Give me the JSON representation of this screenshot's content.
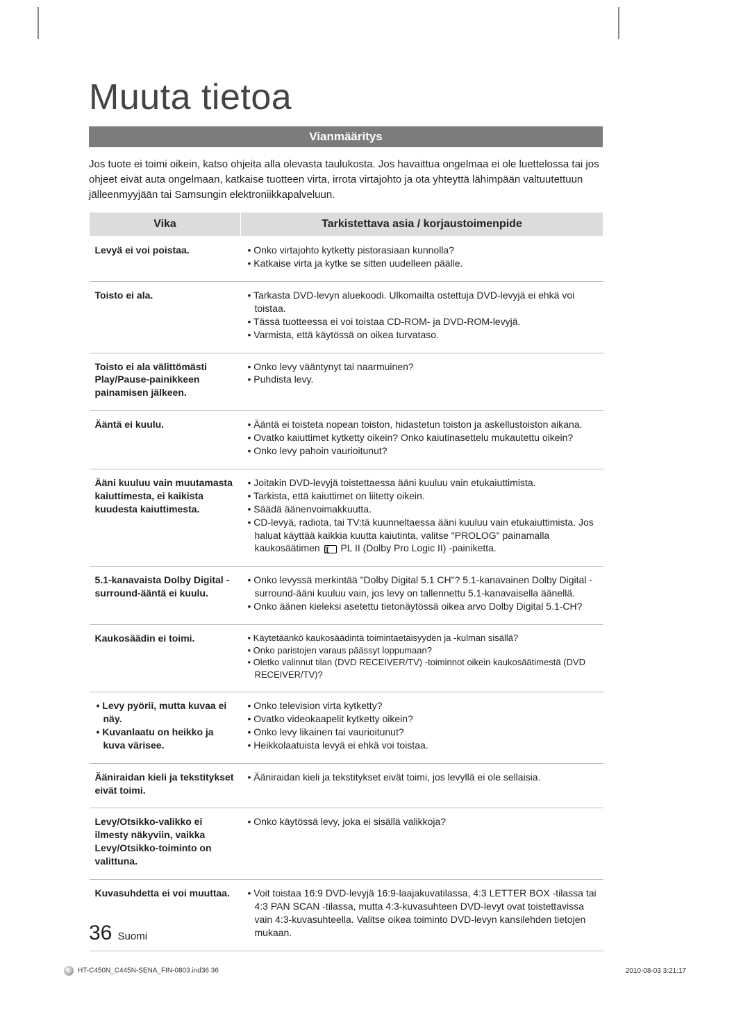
{
  "page": {
    "title": "Muuta tietoa",
    "section_heading": "Vianmääritys",
    "intro": "Jos tuote ei toimi oikein, katso ohjeita alla olevasta taulukosta. Jos havaittua ongelmaa ei ole luettelossa tai jos ohjeet eivät auta ongelmaan, katkaise tuotteen virta, irrota virtajohto ja ota yhteyttä lähimpään valtuutettuun jälleenmyyjään tai Samsungin elektroniikkapalveluun.",
    "columns": {
      "c1": "Vika",
      "c2": "Tarkistettava asia / korjaustoimenpide"
    },
    "rows": [
      {
        "symptom": "Levyä ei voi poistaa.",
        "fixes": [
          "Onko virtajohto kytketty pistorasiaan kunnolla?",
          "Katkaise virta ja kytke se sitten uudelleen päälle."
        ]
      },
      {
        "symptom": "Toisto ei ala.",
        "fixes": [
          "Tarkasta DVD-levyn aluekoodi. Ulkomailta ostettuja DVD-levyjä ei ehkä voi toistaa.",
          "Tässä tuotteessa ei voi toistaa CD-ROM- ja DVD-ROM-levyjä.",
          "Varmista, että käytössä on oikea turvataso."
        ]
      },
      {
        "symptom": "Toisto ei ala välittömästi Play/Pause-painikkeen painamisen jälkeen.",
        "fixes": [
          "Onko levy vääntynyt tai naarmuinen?",
          "Puhdista levy."
        ]
      },
      {
        "symptom": "Ääntä ei kuulu.",
        "fixes": [
          "Ääntä ei toisteta nopean toiston, hidastetun toiston ja askellustoiston aikana.",
          "Ovatko kaiuttimet kytketty oikein? Onko kaiutinasettelu mukautettu oikein?",
          "Onko levy pahoin vaurioitunut?"
        ]
      },
      {
        "symptom": "Ääni kuuluu vain muutamasta kaiuttimesta, ei kaikista kuudesta kaiuttimesta.",
        "fixes_special": {
          "items": [
            "Joitakin DVD-levyjä toistettaessa ääni kuuluu vain etukaiuttimista.",
            "Tarkista, että kaiuttimet on liitetty oikein.",
            "Säädä äänenvoimakkuutta.",
            "CD-levyä, radiota, tai TV:tä kuunneltaessa ääni kuuluu vain etukaiuttimista. Jos haluat käyttää kaikkia kuutta kaiutinta, valitse \"PROLOG\" painamalla kaukosäätimen ",
            " PL II (Dolby Pro Logic II) -painiketta."
          ]
        }
      },
      {
        "symptom": "5.1-kanavaista Dolby Digital -surround-ääntä ei kuulu.",
        "fixes": [
          "Onko levyssä merkintää \"Dolby Digital 5.1 CH\"? 5.1-kanavainen Dolby Digital -surround-ääni kuuluu vain, jos levy on tallennettu 5.1-kanavaisella äänellä.",
          "Onko äänen kieleksi asetettu tietonäytössä oikea arvo Dolby Digital 5.1-CH?"
        ]
      },
      {
        "symptom": "Kaukosäädin ei toimi.",
        "fixes_small": [
          "Käytetäänkö kaukosäädintä toimintaetäisyyden ja -kulman sisällä?",
          "Onko paristojen varaus päässyt loppumaan?",
          "Oletko valinnut tilan (DVD RECEIVER/TV) -toiminnot oikein kaukosäätimestä (DVD RECEIVER/TV)?"
        ]
      },
      {
        "symptom_bullets": [
          "Levy pyörii, mutta kuvaa ei näy.",
          "Kuvanlaatu on heikko ja kuva värisee."
        ],
        "fixes": [
          "Onko television virta kytketty?",
          "Ovatko videokaapelit kytketty oikein?",
          "Onko levy likainen tai vaurioitunut?",
          "Heikkolaatuista levyä ei ehkä voi toistaa."
        ]
      },
      {
        "symptom": "Ääniraidan kieli ja tekstitykset eivät toimi.",
        "fixes": [
          "Ääniraidan kieli ja tekstitykset eivät toimi, jos levyllä ei ole sellaisia."
        ]
      },
      {
        "symptom": "Levy/Otsikko-valikko ei ilmesty näkyviin, vaikka Levy/Otsikko-toiminto on valittuna.",
        "fixes": [
          "Onko käytössä levy, joka ei sisällä valikkoja?"
        ]
      },
      {
        "symptom": "Kuvasuhdetta ei voi muuttaa.",
        "fixes": [
          "Voit toistaa 16:9 DVD-levyjä 16:9-laajakuvatilassa, 4:3 LETTER BOX -tilassa tai 4:3 PAN SCAN -tilassa, mutta 4:3-kuvasuhteen DVD-levyt ovat toistettavissa vain 4:3-kuvasuhteella. Valitse oikea toiminto DVD-levyn kansilehden tietojen mukaan."
        ]
      }
    ],
    "page_number": "36",
    "language": "Suomi",
    "footer_file": "HT-C450N_C445N-SENA_FIN-0803.ind36   36",
    "footer_time": "2010-08-03   3:21:17"
  },
  "colors": {
    "bar_bg": "#7c7c7c",
    "header_bg": "#dcdcdc",
    "border": "#bbbbbb",
    "text": "#222222"
  }
}
